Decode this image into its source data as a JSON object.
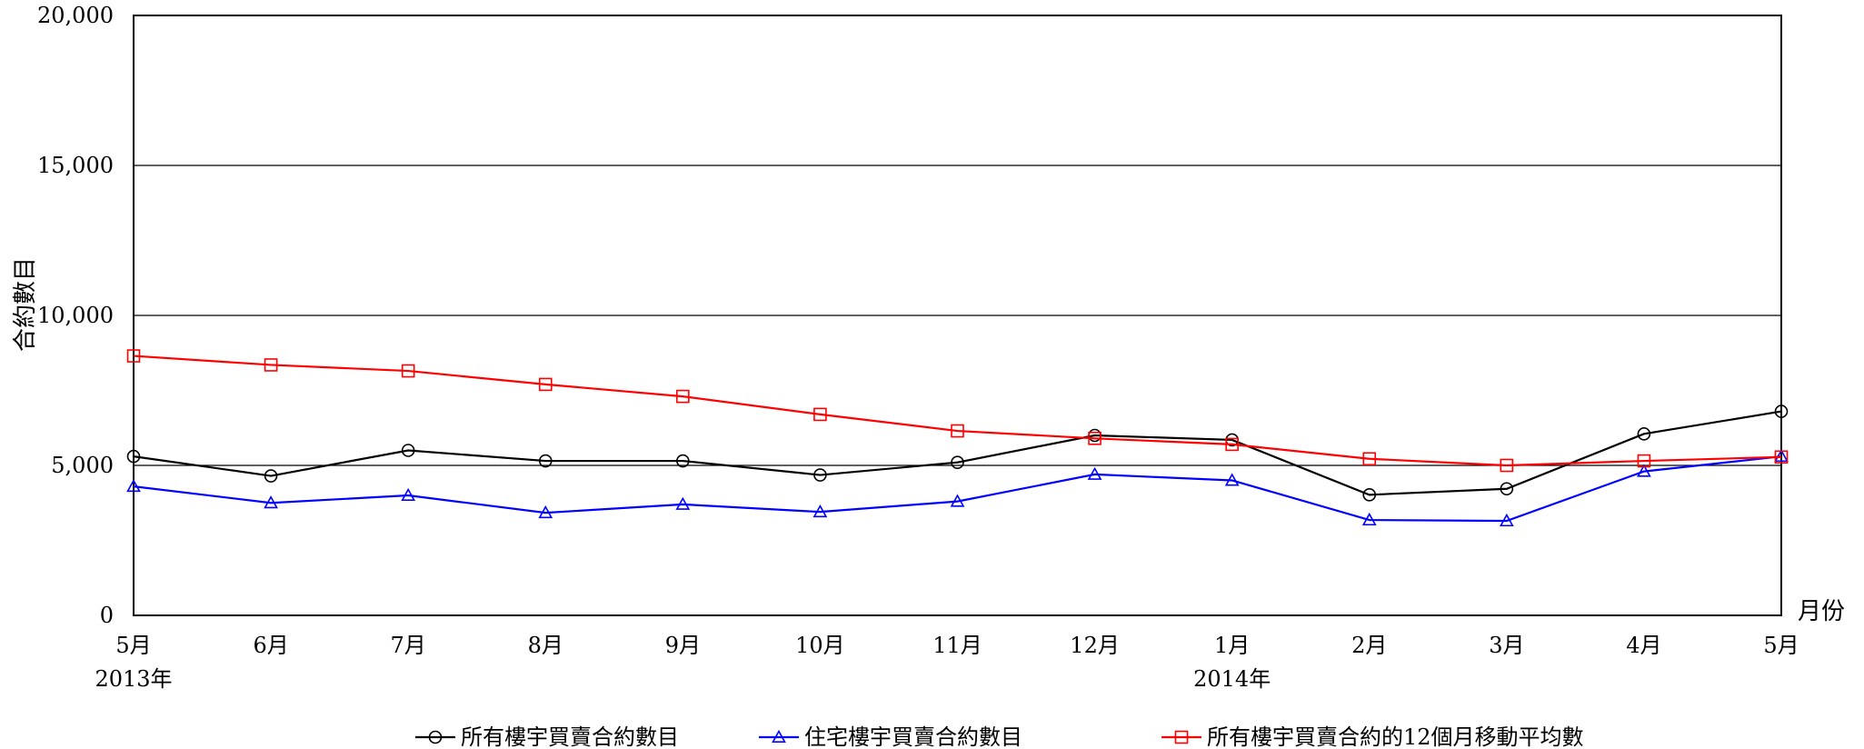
{
  "chart_data": {
    "type": "line",
    "title": "",
    "ylabel": "合約數目",
    "xlabel": "月份",
    "ylim": [
      0,
      20000
    ],
    "y_ticks": [
      0,
      5000,
      10000,
      15000,
      20000
    ],
    "y_tick_labels": [
      "0",
      "5,000",
      "10,000",
      "15,000",
      "20,000"
    ],
    "grid": "horizontal",
    "categories": [
      "5月",
      "6月",
      "7月",
      "8月",
      "9月",
      "10月",
      "11月",
      "12月",
      "1月",
      "2月",
      "3月",
      "4月",
      "5月"
    ],
    "year_labels": [
      {
        "index": 0,
        "label": "2013年"
      },
      {
        "index": 8,
        "label": "2014年"
      }
    ],
    "legend_position": "bottom",
    "series": [
      {
        "name": "所有樓宇買賣合約數目",
        "color": "#000000",
        "marker": "circle",
        "values": [
          5300,
          4650,
          5500,
          5150,
          5150,
          4680,
          5100,
          6000,
          5850,
          4020,
          4220,
          6050,
          6800
        ]
      },
      {
        "name": "住宅樓宇買賣合約數目",
        "color": "#0000ff",
        "marker": "triangle",
        "values": [
          4300,
          3750,
          4000,
          3420,
          3700,
          3450,
          3800,
          4700,
          4500,
          3180,
          3150,
          4800,
          5300
        ]
      },
      {
        "name": "所有樓宇買賣合約的12個月移動平均數",
        "color": "#ff0000",
        "marker": "square",
        "values": [
          8650,
          8350,
          8150,
          7700,
          7300,
          6700,
          6150,
          5900,
          5700,
          5220,
          5000,
          5150,
          5280
        ]
      }
    ]
  }
}
